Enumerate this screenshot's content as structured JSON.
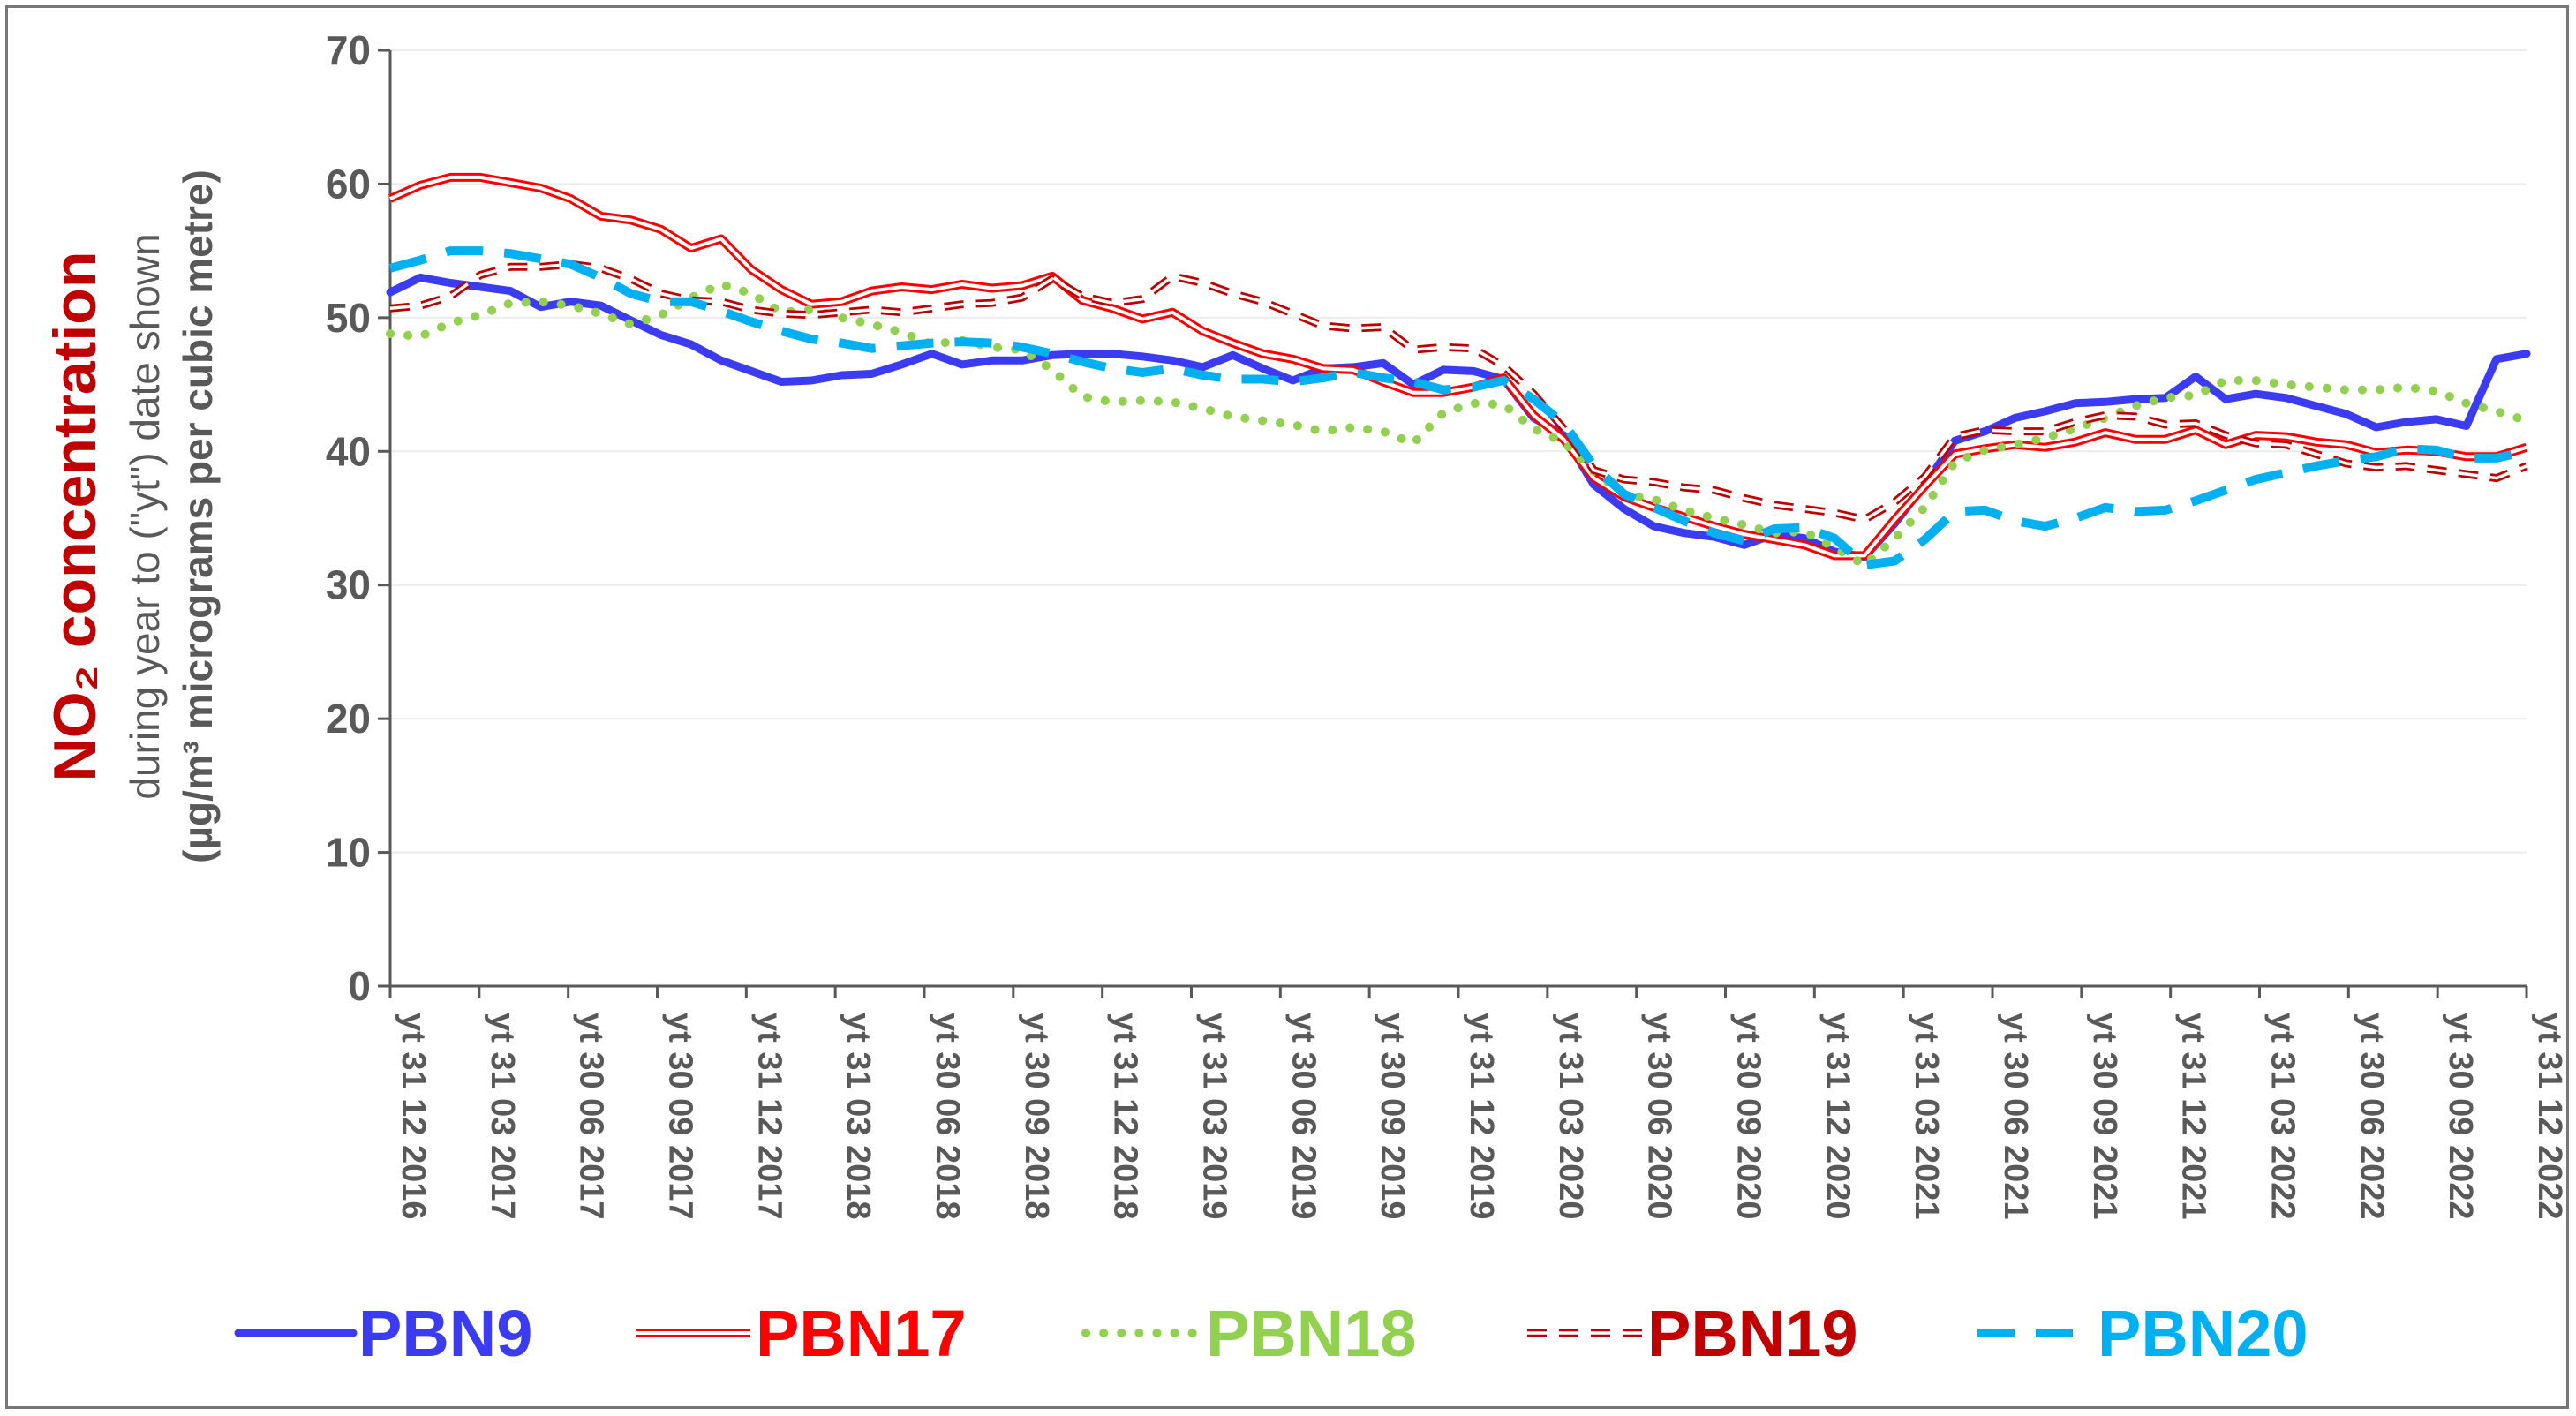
{
  "chart_data": {
    "type": "line",
    "title": "",
    "ylabel_main": "NO₂ concentration",
    "ylabel_sub": "during year to (\"yt\") date shown",
    "ylabel_unit": "(µg/m³ micrograms per cubic metre)",
    "ylim": [
      0,
      70
    ],
    "yticks": [
      "0",
      "10",
      "20",
      "30",
      "40",
      "50",
      "60",
      "70"
    ],
    "grid": true,
    "legend_position": "bottom",
    "x_tick_labels": [
      "yt 31 12 2016",
      "yt 31 03 2017",
      "yt 30 06 2017",
      "yt 30 09 2017",
      "yt 31 12 2017",
      "yt 31 03 2018",
      "yt 30 06 2018",
      "yt 30 09 2018",
      "yt 31 12 2018",
      "yt 31 03 2019",
      "yt 30 06 2019",
      "yt 30 09 2019",
      "yt 31 12 2019",
      "yt 31 03 2020",
      "yt 30 06 2020",
      "yt 30 09 2020",
      "yt 31 12 2020",
      "yt 31 03 2021",
      "yt 30 06 2021",
      "yt 30 09 2021",
      "yt 31 12 2021",
      "yt 31 03 2022",
      "yt 30 06 2022",
      "yt 30 09 2022",
      "yt 31 12 2022"
    ],
    "series": [
      {
        "name": "PBN9",
        "color": "#3b3bf2",
        "style": "solid-thick",
        "values": [
          51.9,
          53.0,
          52.6,
          52.3,
          52.0,
          50.8,
          51.2,
          50.9,
          49.8,
          48.7,
          48.0,
          46.8,
          46.0,
          45.2,
          45.3,
          45.7,
          45.8,
          46.5,
          47.3,
          46.5,
          46.8,
          46.8,
          47.2,
          47.3,
          47.3,
          47.1,
          46.8,
          46.3,
          47.2,
          46.2,
          45.3,
          46.2,
          46.3,
          46.6,
          45.0,
          46.1,
          46.0,
          45.4,
          42.5,
          41.2,
          37.5,
          35.7,
          34.4,
          33.9,
          33.6,
          33.0,
          33.8,
          33.5,
          32.5,
          32.1,
          34.6,
          37.5,
          40.8,
          41.5,
          42.5,
          43.0,
          43.6,
          43.7,
          43.9,
          44.0,
          45.6,
          43.9,
          44.3,
          44.0,
          43.4,
          42.8,
          41.8,
          42.2,
          42.4,
          41.9,
          46.9,
          47.3
        ]
      },
      {
        "name": "PBN17",
        "color": "#ff0000",
        "style": "double",
        "values": [
          58.9,
          59.9,
          60.5,
          60.5,
          60.1,
          59.7,
          58.9,
          57.6,
          57.3,
          56.6,
          55.2,
          55.9,
          53.6,
          52.1,
          51.0,
          51.2,
          52.0,
          52.3,
          52.1,
          52.5,
          52.2,
          52.4,
          53.1,
          51.3,
          50.7,
          49.9,
          50.4,
          49.0,
          48.1,
          47.3,
          46.9,
          46.2,
          46.1,
          45.2,
          44.4,
          44.4,
          44.8,
          45.5,
          42.7,
          40.9,
          38.0,
          36.6,
          35.8,
          35.1,
          34.4,
          33.8,
          33.4,
          33.0,
          32.2,
          32.2,
          34.9,
          37.4,
          39.8,
          40.2,
          40.5,
          40.3,
          40.7,
          41.4,
          40.9,
          40.9,
          41.6,
          40.5,
          41.2,
          41.1,
          40.7,
          40.5,
          39.9,
          40.1,
          40.0,
          39.6,
          39.6,
          40.3
        ]
      },
      {
        "name": "PBN18",
        "color": "#92d050",
        "style": "dotted",
        "values": [
          48.8,
          48.6,
          49.6,
          50.2,
          51.1,
          51.2,
          50.9,
          50.3,
          49.5,
          50.2,
          51.5,
          52.5,
          51.8,
          50.4,
          50.6,
          50.0,
          49.5,
          48.9,
          48.0,
          48.3,
          47.8,
          47.6,
          46.1,
          44.1,
          43.7,
          43.8,
          43.7,
          43.2,
          42.6,
          42.3,
          42.0,
          41.5,
          41.8,
          41.5,
          40.6,
          42.9,
          43.6,
          43.5,
          41.7,
          40.7,
          38.5,
          36.8,
          36.4,
          35.6,
          35.0,
          34.5,
          33.9,
          34.0,
          32.8,
          31.5,
          33.5,
          35.8,
          39.2,
          40.1,
          40.5,
          41.0,
          41.7,
          42.5,
          43.4,
          44.0,
          44.2,
          45.3,
          45.3,
          45.0,
          44.8,
          44.6,
          44.6,
          44.8,
          44.5,
          43.6,
          43.0,
          42.3
        ]
      },
      {
        "name": "PBN19",
        "color": "#c00000",
        "style": "dashed-double",
        "values": [
          50.7,
          50.9,
          51.6,
          53.2,
          53.8,
          53.8,
          54.0,
          53.7,
          52.9,
          51.8,
          51.3,
          51.2,
          50.6,
          50.3,
          50.2,
          50.4,
          50.6,
          50.4,
          50.7,
          51.0,
          51.1,
          51.5,
          52.9,
          51.6,
          51.1,
          51.4,
          53.1,
          52.6,
          51.8,
          51.2,
          50.3,
          49.4,
          49.2,
          49.3,
          47.6,
          47.8,
          47.7,
          46.4,
          44.3,
          41.7,
          38.6,
          37.9,
          37.7,
          37.3,
          37.1,
          36.5,
          36.0,
          35.7,
          35.4,
          34.9,
          36.2,
          38.1,
          41.1,
          41.6,
          41.5,
          41.5,
          42.2,
          42.7,
          42.6,
          42.0,
          42.1,
          41.2,
          40.6,
          40.5,
          39.8,
          39.1,
          38.8,
          38.9,
          38.6,
          38.3,
          38.0,
          38.9
        ]
      },
      {
        "name": "PBN20",
        "color": "#00b0f0",
        "style": "long-dash",
        "values": [
          53.7,
          54.3,
          55.0,
          55.0,
          54.8,
          54.4,
          54.0,
          53.0,
          51.8,
          51.2,
          51.2,
          50.5,
          49.7,
          49.0,
          48.4,
          48.1,
          47.7,
          47.9,
          48.1,
          48.2,
          48.1,
          47.8,
          47.3,
          46.7,
          46.2,
          45.9,
          46.2,
          45.7,
          45.4,
          45.4,
          45.2,
          45.5,
          45.9,
          45.5,
          45.2,
          44.6,
          44.8,
          45.3,
          43.9,
          42.1,
          38.9,
          36.8,
          35.8,
          34.8,
          33.9,
          33.3,
          34.2,
          34.3,
          33.5,
          31.5,
          31.8,
          33.4,
          35.5,
          35.6,
          34.8,
          34.4,
          35.0,
          35.8,
          35.5,
          35.6,
          36.3,
          37.1,
          37.9,
          38.4,
          38.9,
          39.3,
          39.6,
          40.2,
          40.1,
          39.5,
          39.5,
          40.0
        ]
      }
    ]
  }
}
